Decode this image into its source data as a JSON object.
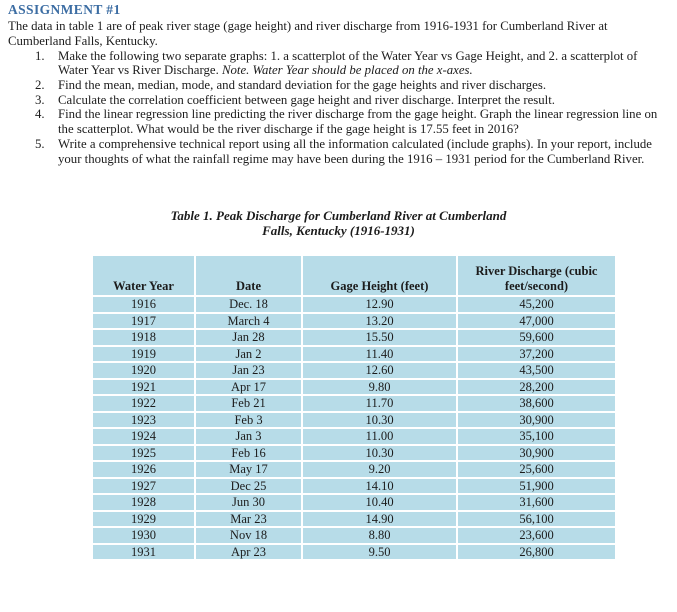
{
  "document": {
    "heading": "ASSIGNMENT #1",
    "intro": "The data in table 1 are of peak river stage (gage height) and river discharge from 1916-1931 for Cumberland River at Cumberland Falls, Kentucky.",
    "list": {
      "items": [
        {
          "num": "1.",
          "text": "Make the following two separate graphs:  1. a scatterplot of the Water Year vs Gage Height, and 2. a scatterplot of Water Year vs River Discharge. ",
          "note": "Note. Water Year should be placed on the x-axes."
        },
        {
          "num": "2.",
          "text": "Find the mean, median, mode, and standard deviation for the gage heights and river discharges.",
          "note": ""
        },
        {
          "num": "3.",
          "text": "Calculate the correlation coefficient between gage height and river discharge. Interpret the result.",
          "note": ""
        },
        {
          "num": "4.",
          "text": "Find the linear regression line predicting the river discharge from the gage height.  Graph the linear regression line on the scatterplot.  What would be the river discharge if the gage height is 17.55 feet in 2016?",
          "note": ""
        },
        {
          "num": "5.",
          "text": "Write a comprehensive technical report using all the information calculated (include graphs). In your report, include your thoughts of what the rainfall regime may have been during the 1916 – 1931 period for the Cumberland River.",
          "note": ""
        }
      ]
    },
    "table": {
      "title_line1": "Table 1.  Peak Discharge for Cumberland River at Cumberland",
      "title_line2": "Falls, Kentucky (1916-1931)",
      "columns": [
        "Water Year",
        "Date",
        "Gage Height (feet)",
        "River Discharge (cubic feet/second)"
      ],
      "rows": [
        [
          "1916",
          "Dec. 18",
          "12.90",
          "45,200"
        ],
        [
          "1917",
          "March 4",
          "13.20",
          "47,000"
        ],
        [
          "1918",
          "Jan 28",
          "15.50",
          "59,600"
        ],
        [
          "1919",
          "Jan 2",
          "11.40",
          "37,200"
        ],
        [
          "1920",
          "Jan 23",
          "12.60",
          "43,500"
        ],
        [
          "1921",
          "Apr 17",
          "9.80",
          "28,200"
        ],
        [
          "1922",
          "Feb 21",
          "11.70",
          "38,600"
        ],
        [
          "1923",
          "Feb 3",
          "10.30",
          "30,900"
        ],
        [
          "1924",
          "Jan 3",
          "11.00",
          "35,100"
        ],
        [
          "1925",
          "Feb 16",
          "10.30",
          "30,900"
        ],
        [
          "1926",
          "May 17",
          "9.20",
          "25,600"
        ],
        [
          "1927",
          "Dec 25",
          "14.10",
          "51,900"
        ],
        [
          "1928",
          "Jun 30",
          "10.40",
          "31,600"
        ],
        [
          "1929",
          "Mar 23",
          "14.90",
          "56,100"
        ],
        [
          "1930",
          "Nov 18",
          "8.80",
          "23,600"
        ],
        [
          "1931",
          "Apr 23",
          "9.50",
          "26,800"
        ]
      ]
    },
    "colors": {
      "heading_blue": "#3c6da3",
      "table_cell_blue": "#b7dce8"
    }
  }
}
